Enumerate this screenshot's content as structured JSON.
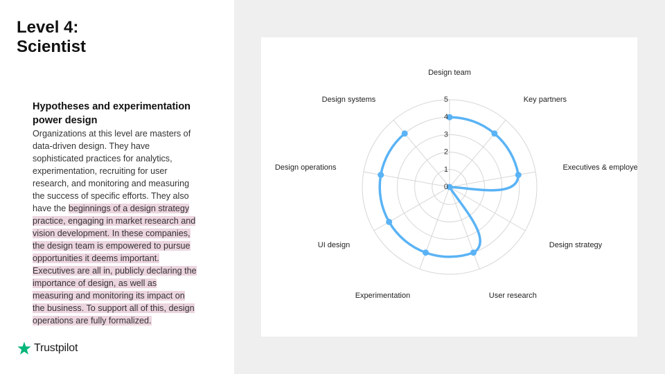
{
  "slide": {
    "title_line1": "Level 4:",
    "title_line2": "Scientist",
    "subtitle": "Hypotheses and experimentation power design",
    "body_plain": "Organizations at this level are masters of data-driven design. They have sophisticated practices for analytics, experimentation, recruiting for user research, and monitoring and measuring the success of specific efforts. They also have the ",
    "body_highlight": "beginnings of a design strategy practice, engaging in market research and vision development. In these companies, the design team is empowered to pursue opportunities it deems important. Executives are all in, publicly declaring the importance of design, as well as measuring and monitoring its impact on the business. To support all of this, design operations are fully formalized.",
    "brand_name": "Trustpilot"
  },
  "colors": {
    "series": "#5ab3f5",
    "highlight": "#ecd5df",
    "brand_star": "#00b67a",
    "right_panel": "#efefef",
    "grid": "#d6d6d6"
  },
  "chart_data": {
    "type": "radar",
    "categories": [
      "Design team",
      "Key partners",
      "Executives & employees",
      "Design strategy",
      "User research",
      "Experimentation",
      "UI design",
      "Design operations",
      "Design systems"
    ],
    "series": [
      {
        "values": [
          4,
          4,
          4,
          0,
          4,
          4,
          4,
          4,
          4
        ]
      }
    ],
    "rlim": [
      0,
      5
    ],
    "ticks": [
      0,
      1,
      2,
      3,
      4,
      5
    ],
    "grid": true,
    "legend": "none"
  }
}
